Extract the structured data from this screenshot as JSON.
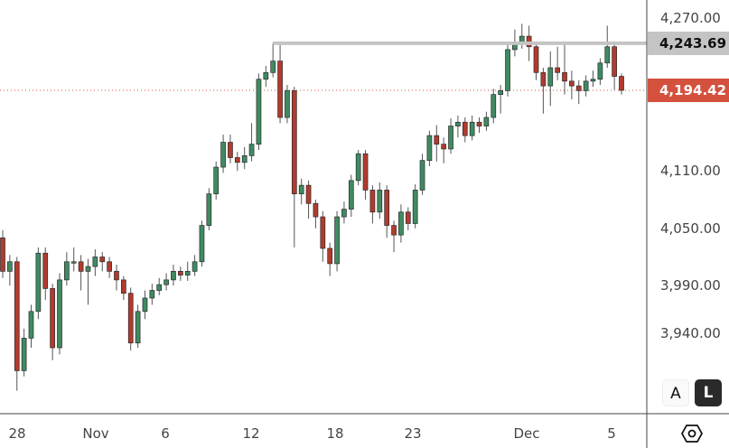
{
  "chart_data": {
    "type": "candlestick",
    "ylim": [
      3860,
      4290
    ],
    "grid": false,
    "colors": {
      "up": "#3f8b61",
      "down": "#b23a2e",
      "border": "#2b2b2b",
      "level_line": "#c4c4c4",
      "last_price": "#d4513d"
    },
    "y_ticks": [
      {
        "value": 4270,
        "label": "4,270.00"
      },
      {
        "value": 4110,
        "label": "4,110.00"
      },
      {
        "value": 4050,
        "label": "4,050.00"
      },
      {
        "value": 3990,
        "label": "3,990.00"
      },
      {
        "value": 3940,
        "label": "3,940.00"
      }
    ],
    "x_ticks": [
      "28",
      "Nov",
      "6",
      "12",
      "18",
      "23",
      "Dec",
      "5"
    ],
    "level_line": {
      "value": 4243.69,
      "label": "4,243.69"
    },
    "last_price": {
      "value": 4194.42,
      "label": "4,194.42"
    },
    "candles": [
      [
        4040,
        4048,
        3998,
        4005
      ],
      [
        4005,
        4022,
        3990,
        4015
      ],
      [
        4015,
        4020,
        3880,
        3901
      ],
      [
        3901,
        3945,
        3895,
        3935
      ],
      [
        3935,
        3970,
        3925,
        3963
      ],
      [
        3963,
        4030,
        3955,
        4024
      ],
      [
        4024,
        4030,
        3975,
        3987
      ],
      [
        3987,
        3992,
        3912,
        3925
      ],
      [
        3925,
        4003,
        3918,
        3996
      ],
      [
        3996,
        4025,
        3990,
        4015
      ],
      [
        4015,
        4030,
        4005,
        4015
      ],
      [
        4015,
        4022,
        3985,
        4005
      ],
      [
        4005,
        4018,
        3970,
        4010
      ],
      [
        4010,
        4028,
        4000,
        4020
      ],
      [
        4020,
        4025,
        4005,
        4015
      ],
      [
        4015,
        4020,
        3998,
        4005
      ],
      [
        4005,
        4012,
        3985,
        3996
      ],
      [
        3996,
        4000,
        3975,
        3982
      ],
      [
        3982,
        3988,
        3922,
        3930
      ],
      [
        3930,
        3970,
        3925,
        3963
      ],
      [
        3963,
        3985,
        3955,
        3977
      ],
      [
        3977,
        3992,
        3970,
        3985
      ],
      [
        3985,
        3998,
        3980,
        3991
      ],
      [
        3991,
        4003,
        3985,
        3996
      ],
      [
        3996,
        4012,
        3990,
        4005
      ],
      [
        4005,
        4010,
        3995,
        4001
      ],
      [
        4001,
        4015,
        3995,
        4005
      ],
      [
        4005,
        4022,
        4000,
        4015
      ],
      [
        4015,
        4058,
        4010,
        4053
      ],
      [
        4053,
        4092,
        4048,
        4086
      ],
      [
        4086,
        4120,
        4080,
        4114
      ],
      [
        4114,
        4148,
        4108,
        4140
      ],
      [
        4140,
        4148,
        4118,
        4124
      ],
      [
        4124,
        4130,
        4110,
        4119
      ],
      [
        4119,
        4135,
        4112,
        4126
      ],
      [
        4126,
        4160,
        4120,
        4138
      ],
      [
        4138,
        4212,
        4132,
        4206
      ],
      [
        4206,
        4220,
        4198,
        4213
      ],
      [
        4213,
        4244,
        4208,
        4225
      ],
      [
        4225,
        4244,
        4160,
        4166
      ],
      [
        4166,
        4200,
        4160,
        4194
      ],
      [
        4194,
        4198,
        4030,
        4086
      ],
      [
        4086,
        4102,
        4075,
        4095
      ],
      [
        4095,
        4100,
        4060,
        4076
      ],
      [
        4076,
        4080,
        4050,
        4062
      ],
      [
        4062,
        4068,
        4015,
        4029
      ],
      [
        4029,
        4035,
        4000,
        4013
      ],
      [
        4013,
        4068,
        4005,
        4062
      ],
      [
        4062,
        4078,
        4055,
        4070
      ],
      [
        4070,
        4106,
        4062,
        4100
      ],
      [
        4100,
        4132,
        4095,
        4128
      ],
      [
        4128,
        4132,
        4080,
        4090
      ],
      [
        4090,
        4095,
        4055,
        4067
      ],
      [
        4067,
        4098,
        4060,
        4090
      ],
      [
        4090,
        4095,
        4040,
        4053
      ],
      [
        4053,
        4058,
        4025,
        4043
      ],
      [
        4043,
        4075,
        4035,
        4067
      ],
      [
        4067,
        4072,
        4048,
        4055
      ],
      [
        4055,
        4096,
        4050,
        4090
      ],
      [
        4090,
        4128,
        4085,
        4121
      ],
      [
        4121,
        4152,
        4115,
        4147
      ],
      [
        4147,
        4158,
        4120,
        4138
      ],
      [
        4138,
        4145,
        4118,
        4133
      ],
      [
        4133,
        4165,
        4128,
        4157
      ],
      [
        4157,
        4168,
        4145,
        4161
      ],
      [
        4161,
        4166,
        4140,
        4147
      ],
      [
        4147,
        4168,
        4142,
        4161
      ],
      [
        4161,
        4166,
        4150,
        4157
      ],
      [
        4157,
        4172,
        4152,
        4166
      ],
      [
        4166,
        4196,
        4160,
        4190
      ],
      [
        4190,
        4200,
        4170,
        4194
      ],
      [
        4194,
        4243,
        4188,
        4237
      ],
      [
        4237,
        4258,
        4230,
        4244
      ],
      [
        4244,
        4264,
        4238,
        4251
      ],
      [
        4251,
        4262,
        4225,
        4240
      ],
      [
        4240,
        4244,
        4205,
        4213
      ],
      [
        4213,
        4218,
        4170,
        4199
      ],
      [
        4199,
        4235,
        4178,
        4218
      ],
      [
        4218,
        4240,
        4205,
        4213
      ],
      [
        4213,
        4244,
        4190,
        4204
      ],
      [
        4204,
        4215,
        4185,
        4199
      ],
      [
        4199,
        4205,
        4180,
        4194
      ],
      [
        4194,
        4210,
        4188,
        4204
      ],
      [
        4204,
        4215,
        4198,
        4206
      ],
      [
        4206,
        4228,
        4200,
        4223
      ],
      [
        4223,
        4262,
        4218,
        4240
      ],
      [
        4240,
        4244,
        4195,
        4209
      ],
      [
        4209,
        4212,
        4190,
        4194.42
      ]
    ]
  },
  "controls": {
    "auto_label": "A",
    "log_label": "L",
    "settings_icon": "hexagon-gear-icon"
  }
}
